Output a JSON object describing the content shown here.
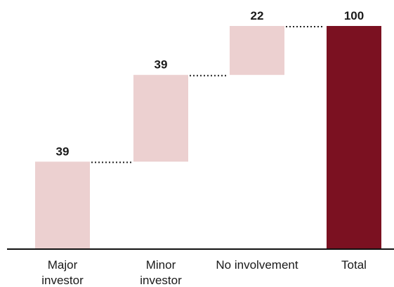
{
  "chart_data": {
    "type": "waterfall",
    "categories": [
      [
        "Major",
        "investor"
      ],
      [
        "Minor",
        "investor"
      ],
      [
        "No involvement"
      ],
      [
        "Total"
      ]
    ],
    "values": [
      39,
      39,
      22,
      100
    ],
    "total_index": 3,
    "value_labels": [
      "39",
      "39",
      "22",
      "100"
    ],
    "ylim": [
      0,
      100
    ],
    "grid": false,
    "legend": "none",
    "colors": {
      "step": "#ecd0d0",
      "total": "#7b1121",
      "connector": "#222222",
      "axis": "#111111"
    }
  }
}
